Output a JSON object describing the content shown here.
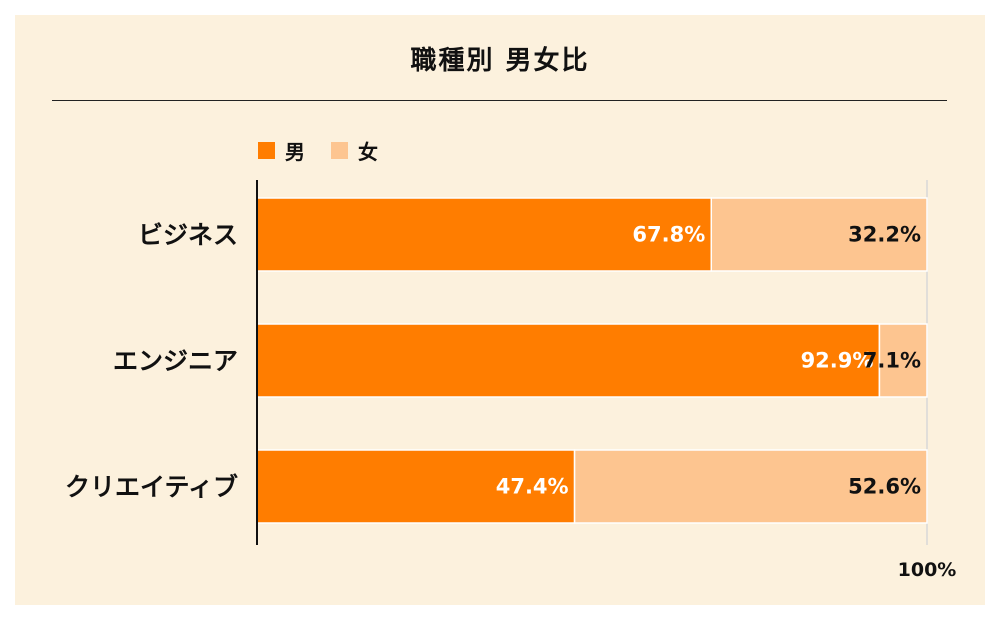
{
  "colors": {
    "background": "#fcf1dd",
    "male": "#ff7d00",
    "female": "#fdc590"
  },
  "chart_data": {
    "type": "bar",
    "orientation": "horizontal",
    "stacked": true,
    "title": "職種別 男女比",
    "categories": [
      "ビジネス",
      "エンジニア",
      "クリエイティブ"
    ],
    "series": [
      {
        "name": "男",
        "values": [
          67.8,
          92.9,
          47.4
        ],
        "labels": [
          "67.8%",
          "92.9%",
          "47.4%"
        ],
        "color": "#ff7d00",
        "label_color": "#ffffff"
      },
      {
        "name": "女",
        "values": [
          32.2,
          7.1,
          52.6
        ],
        "labels": [
          "32.2%",
          "7.1%",
          "52.6%"
        ],
        "color": "#fdc590",
        "label_color": "#111111"
      }
    ],
    "xlim": [
      0,
      100
    ],
    "tick_label": "100%",
    "legend": "top-left"
  }
}
